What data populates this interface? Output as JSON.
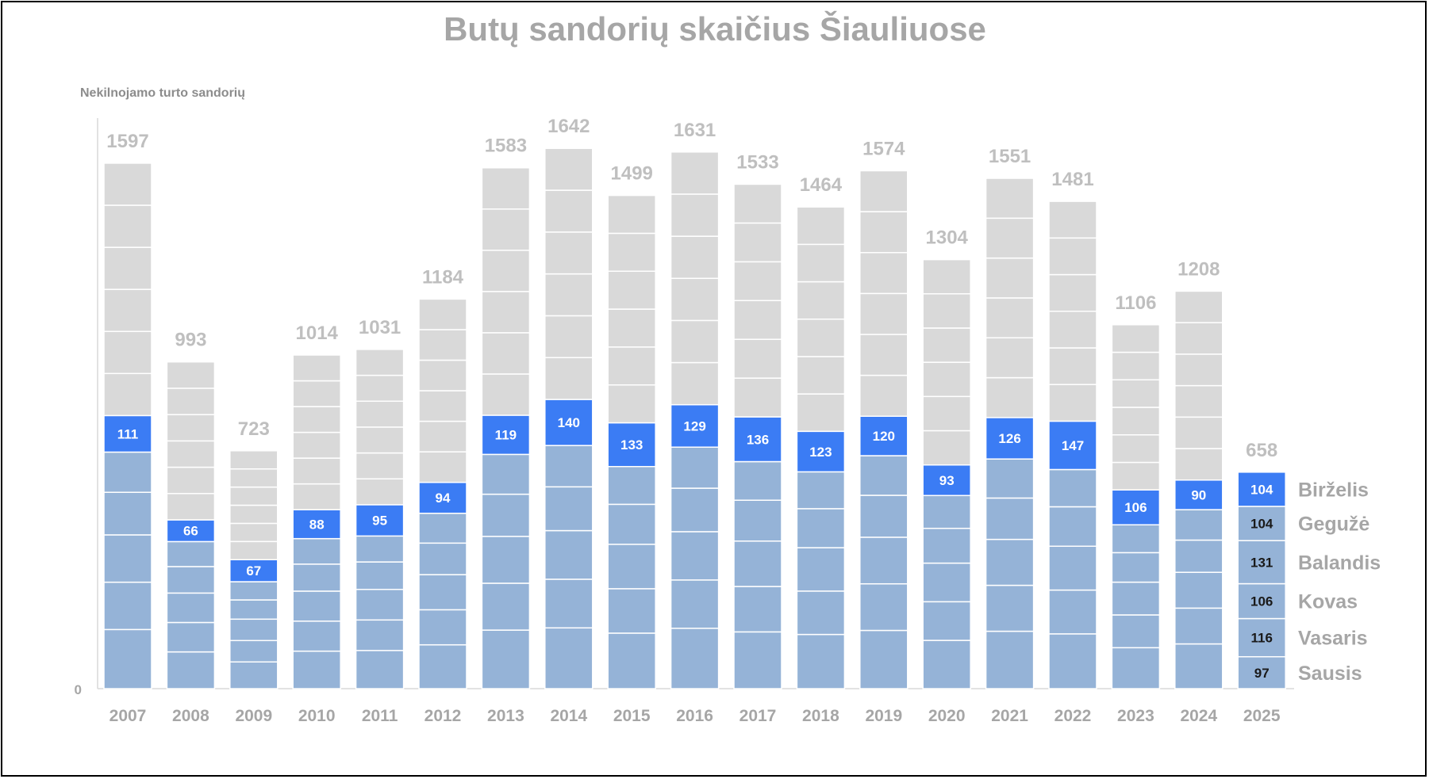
{
  "chart_data": {
    "type": "bar",
    "title": "Butų sandorių skaičius Šiauliuose",
    "ylabel": "Nekilnojamo turto sandorių",
    "xlabel": "",
    "y_zero_label": "0",
    "ylim": [
      0,
      1700
    ],
    "colors": {
      "rest": "#d9d9d9",
      "jan_may": "#95b3d7",
      "june": "#3b7cf4",
      "segment_line": "#ffffff"
    },
    "categories": [
      "2007",
      "2008",
      "2009",
      "2010",
      "2011",
      "2012",
      "2013",
      "2014",
      "2015",
      "2016",
      "2017",
      "2018",
      "2019",
      "2020",
      "2021",
      "2022",
      "2023",
      "2024",
      "2025"
    ],
    "totals": [
      1597,
      993,
      723,
      1014,
      1031,
      1184,
      1583,
      1642,
      1499,
      1631,
      1533,
      1464,
      1574,
      1304,
      1551,
      1481,
      1106,
      1208,
      658
    ],
    "june_values": [
      111,
      66,
      67,
      88,
      95,
      94,
      119,
      140,
      133,
      129,
      136,
      123,
      120,
      93,
      126,
      147,
      106,
      90,
      104
    ],
    "segments_2025": [
      {
        "month": "Sausis",
        "value": 97
      },
      {
        "month": "Vasaris",
        "value": 116
      },
      {
        "month": "Kovas",
        "value": 106
      },
      {
        "month": "Balandis",
        "value": 131
      },
      {
        "month": "Gegužė",
        "value": 104
      },
      {
        "month": "Birželis",
        "value": 104
      }
    ]
  }
}
